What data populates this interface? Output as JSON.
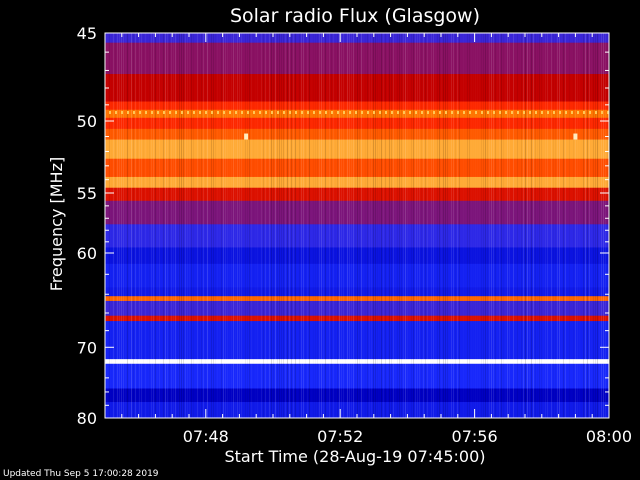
{
  "chart_data": {
    "type": "heatmap",
    "title": "Solar radio Flux (Glasgow)",
    "xlabel": "Start Time (28-Aug-19 07:45:00)",
    "ylabel": "Frequency [MHz]",
    "x_ticks": [
      "07:48",
      "07:52",
      "07:56",
      "08:00"
    ],
    "x_tick_minutes": [
      3,
      7,
      11,
      15
    ],
    "x_range_minutes": [
      0,
      15
    ],
    "y_ticks": [
      45,
      50,
      55,
      60,
      70,
      80
    ],
    "y_range": [
      45,
      80
    ],
    "y_scale": "reciprocal",
    "colormap": [
      "#000040",
      "#0000c8",
      "#1a2cff",
      "#6a1a9a",
      "#c40000",
      "#ff2a00",
      "#ff7a00",
      "#ffd060",
      "#ffffff"
    ],
    "bands": [
      {
        "from": 45,
        "to": 45.5,
        "level": 0.3
      },
      {
        "from": 45.5,
        "to": 47.2,
        "level": 0.42
      },
      {
        "from": 47.2,
        "to": 48.8,
        "level": 0.5
      },
      {
        "from": 48.8,
        "to": 49.3,
        "level": 0.62
      },
      {
        "from": 49.3,
        "to": 49.8,
        "level": 0.74
      },
      {
        "from": 49.8,
        "to": 50.5,
        "level": 0.62
      },
      {
        "from": 50.5,
        "to": 51.2,
        "level": 0.7
      },
      {
        "from": 51.2,
        "to": 52.5,
        "level": 0.82
      },
      {
        "from": 52.5,
        "to": 53.8,
        "level": 0.68
      },
      {
        "from": 53.8,
        "to": 54.6,
        "level": 0.82
      },
      {
        "from": 54.6,
        "to": 55.6,
        "level": 0.55
      },
      {
        "from": 55.6,
        "to": 57.5,
        "level": 0.4
      },
      {
        "from": 57.5,
        "to": 59.5,
        "level": 0.28
      },
      {
        "from": 59.5,
        "to": 61,
        "level": 0.18
      },
      {
        "from": 61,
        "to": 63.3,
        "level": 0.22
      },
      {
        "from": 63.3,
        "to": 64.2,
        "level": 0.2
      },
      {
        "from": 64.2,
        "to": 64.7,
        "level": 0.72
      },
      {
        "from": 64.7,
        "to": 66.3,
        "level": 0.3
      },
      {
        "from": 66.3,
        "to": 66.9,
        "level": 0.55
      },
      {
        "from": 66.9,
        "to": 71.5,
        "level": 0.22
      },
      {
        "from": 71.5,
        "to": 72.1,
        "level": 1.0
      },
      {
        "from": 72.1,
        "to": 75.5,
        "level": 0.24
      },
      {
        "from": 75.5,
        "to": 77.5,
        "level": 0.12
      },
      {
        "from": 77.5,
        "to": 80,
        "level": 0.2
      }
    ],
    "bursts": [
      {
        "minute": 4.2,
        "freq": 51.0,
        "level": 0.95
      },
      {
        "minute": 14.0,
        "freq": 51.0,
        "level": 0.95
      }
    ]
  },
  "footer": "Updated Thu Sep  5 17:00:28 2019"
}
